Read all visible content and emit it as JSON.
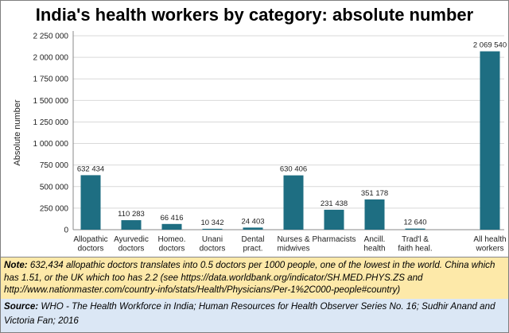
{
  "chart_data": {
    "type": "bar",
    "title": "India's health workers by category: absolute number",
    "ylabel": "Absolute number",
    "xlabel": "",
    "ylim": [
      0,
      2250000
    ],
    "yticks": [
      "0",
      "250 000",
      "500 000",
      "750 000",
      "1 000 000",
      "1 250 000",
      "1 500 000",
      "1 750 000",
      "2 000 000",
      "2 250 000"
    ],
    "ytick_values": [
      0,
      250000,
      500000,
      750000,
      1000000,
      1250000,
      1500000,
      1750000,
      2000000,
      2250000
    ],
    "grid": true,
    "bar_color": "#1e6e82",
    "categories": [
      [
        "Allopathic",
        "doctors"
      ],
      [
        "Ayurvedic",
        "doctors"
      ],
      [
        "Homeo.",
        "doctors"
      ],
      [
        "Unani",
        "doctors"
      ],
      [
        "Dental",
        "pract."
      ],
      [
        "Nurses &",
        "midwives"
      ],
      [
        "Pharmacists"
      ],
      [
        "Ancill.",
        "health"
      ],
      [
        "Trad'l &",
        "faith heal."
      ],
      [
        "All health",
        "workers"
      ]
    ],
    "values": [
      632434,
      110283,
      66416,
      10342,
      24403,
      630406,
      231438,
      351178,
      12640,
      2069540
    ],
    "data_labels": [
      "632 434",
      "110 283",
      "66 416",
      "10 342",
      "24 403",
      "630 406",
      "231 438",
      "351 178",
      "12 640",
      "2 069 540"
    ]
  },
  "note": {
    "label": "Note:",
    "text": " 632,434 allopathic doctors translates into 0.5 doctors per 1000 people, one of the lowest in the world.  China which has 1.51, or the UK which too has 2.2 (see https://data.worldbank.org/indicator/SH.MED.PHYS.ZS and http://www.nationmaster.com/country-info/stats/Health/Physicians/Per-1%2C000-people#country)"
  },
  "source": {
    "label": "Source:",
    "text": "  WHO - The Health Workforce in India; Human Resources for Health Observer Series No. 16; Sudhir Anand and Victoria Fan; 2016"
  }
}
